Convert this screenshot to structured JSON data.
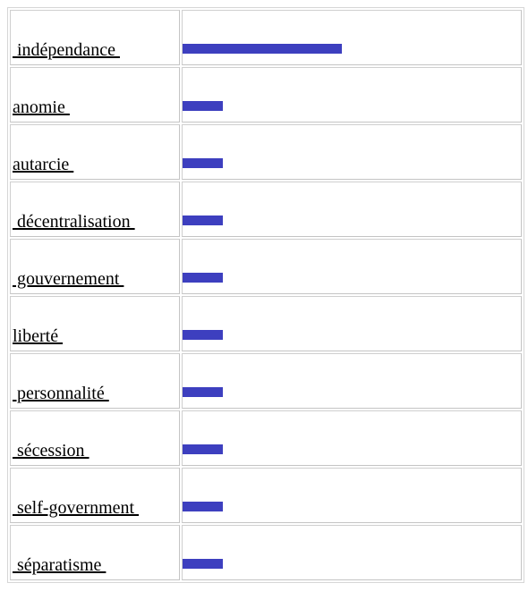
{
  "chart_data": {
    "type": "bar",
    "orientation": "horizontal",
    "categories": [
      "indépendance",
      "anomie",
      "autarcie",
      "décentralisation",
      "gouvernement",
      "liberté",
      "personnalité",
      "sécession",
      "self-government",
      "séparatisme"
    ],
    "values": [
      4,
      1,
      1,
      1,
      1,
      1,
      1,
      1,
      1,
      1
    ],
    "xlim": [
      0,
      4
    ],
    "bar_color": "#3d3fbf",
    "grid": false
  },
  "labels": [
    " indépendance ",
    "anomie ",
    "autarcie ",
    " décentralisation ",
    " gouvernement ",
    "liberté ",
    " personnalité ",
    " sécession ",
    " self-government ",
    " séparatisme "
  ]
}
